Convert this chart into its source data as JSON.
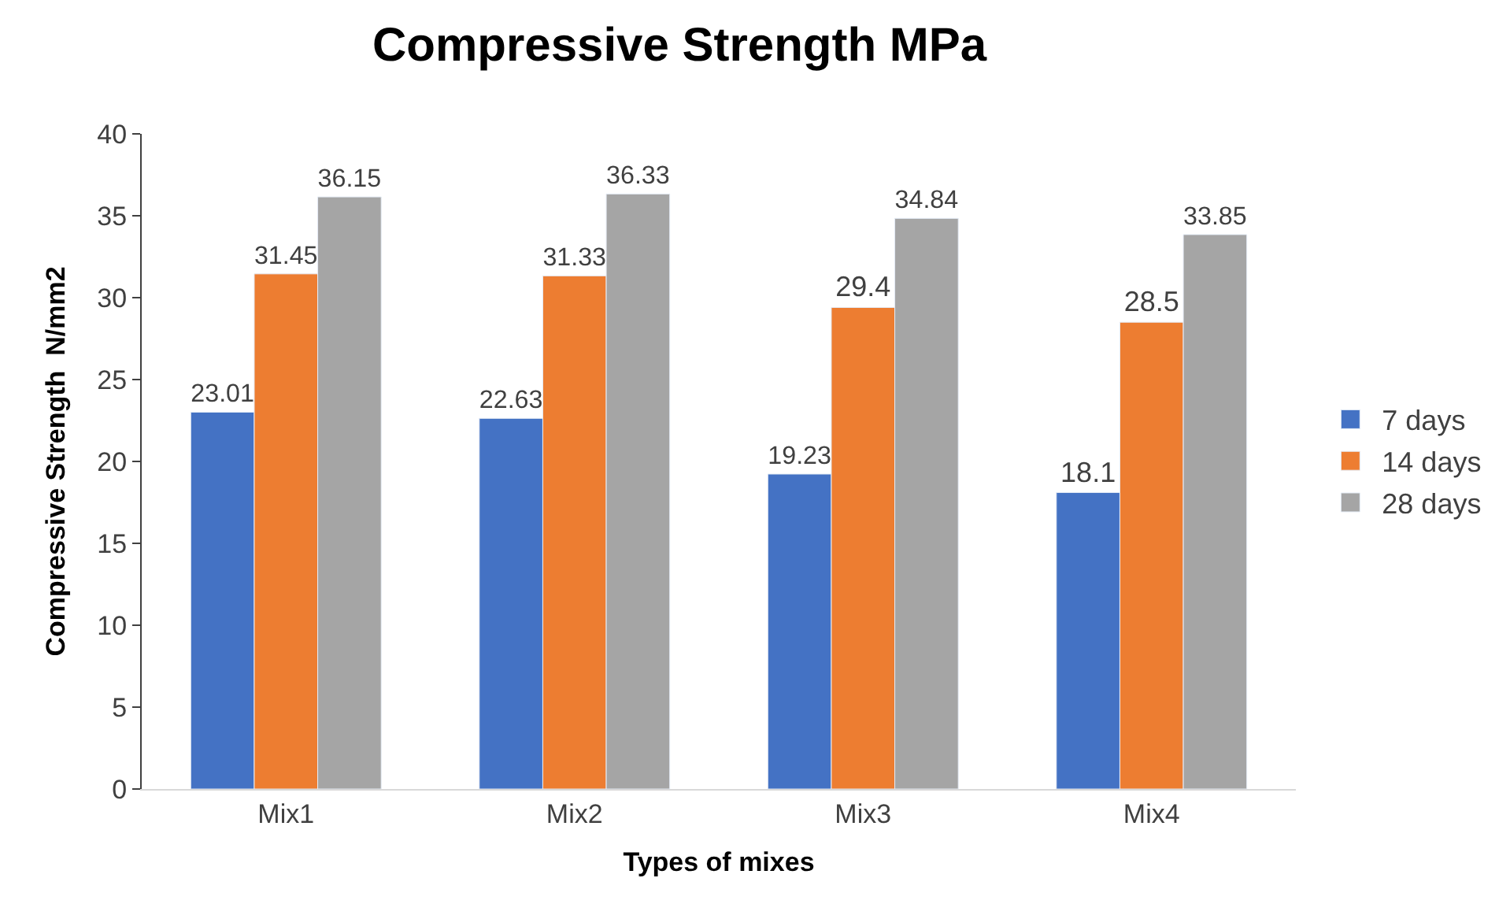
{
  "chart_data": {
    "type": "bar",
    "title": "Compressive Strength MPa",
    "xlabel": "Types of mixes",
    "ylabel": "Compressive Strength  N/mm2",
    "categories": [
      "Mix1",
      "Mix2",
      "Mix3",
      "Mix4"
    ],
    "series": [
      {
        "name": "7 days",
        "color": "#4472c4",
        "values": [
          23.01,
          22.63,
          19.23,
          18.1
        ]
      },
      {
        "name": "14 days",
        "color": "#ed7d31",
        "values": [
          31.45,
          31.33,
          29.4,
          28.5
        ]
      },
      {
        "name": "28 days",
        "color": "#a5a5a5",
        "values": [
          36.15,
          36.33,
          34.84,
          33.85
        ]
      }
    ],
    "ylim": [
      0,
      40
    ],
    "yticks": [
      0,
      5,
      10,
      15,
      20,
      25,
      30,
      35,
      40
    ],
    "legend": "right",
    "data_labels": true
  }
}
